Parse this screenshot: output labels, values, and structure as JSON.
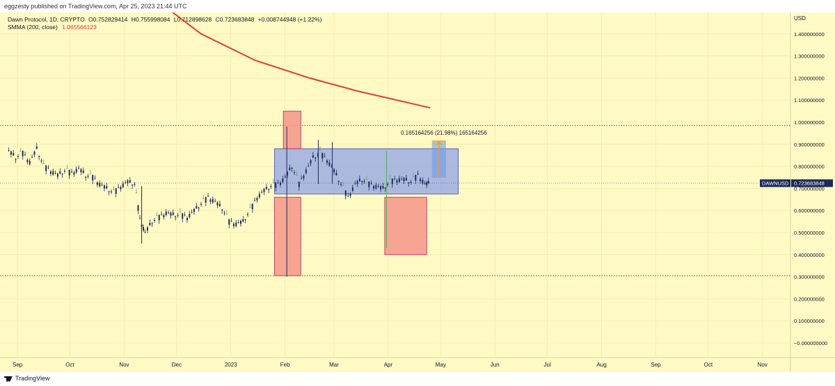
{
  "header": {
    "publisher": "eggzesty published on TradingView.com, Apr 25, 2023 21:44 UTC"
  },
  "legend": {
    "symbol": "Dawn Protocol, 1D, CRYPTO",
    "open": "O0.752829414",
    "high": "H0.755998084",
    "low": "L0.712898628",
    "close": "C0.723683848",
    "change": "+0.008744948 (+1.22%)",
    "ma_label": "SMMA (200, close)",
    "ma_value": "1.065566123"
  },
  "colors": {
    "background": "#fff9c4",
    "candle": "#1c2a5a",
    "candle_up": "#4caf50",
    "ma": "#e53935",
    "range_box": "#8fa3e8",
    "red_box": "#f5978a",
    "measure": "#ff9800"
  },
  "price_label": {
    "symbol": "DAWNUSD",
    "value": "0.723683848"
  },
  "measure_label": "0.165164256 (21.98%) 165164256",
  "footer": {
    "logo": "TradingView"
  },
  "chart_data": {
    "type": "candlestick",
    "currency": "USD",
    "ylim": [
      -0.05,
      1.6
    ],
    "yticks": [
      "1.400000000",
      "1.300000000",
      "1.200000000",
      "1.100000000",
      "1.000000000",
      "0.900000000",
      "0.800000000",
      "0.700000000",
      "0.600000000",
      "0.500000000",
      "0.400000000",
      "0.300000000",
      "0.200000000",
      "0.100000000",
      "−0.000000000"
    ],
    "ytick_values": [
      1.4,
      1.3,
      1.2,
      1.1,
      1.0,
      0.9,
      0.8,
      0.7,
      0.6,
      0.5,
      0.4,
      0.3,
      0.2,
      0.1,
      0.0
    ],
    "xlabels": [
      "Sep",
      "Oct",
      "Nov",
      "Dec",
      "2023",
      "Feb",
      "Mar",
      "Apr",
      "May",
      "Jun",
      "Jul",
      "Aug",
      "Sep",
      "Oct",
      "Nov"
    ],
    "xlabel_dates": [
      "2022-09-01",
      "2022-10-01",
      "2022-11-01",
      "2022-12-01",
      "2023-01-01",
      "2023-02-01",
      "2023-03-01",
      "2023-04-01",
      "2023-05-01",
      "2023-06-01",
      "2023-07-01",
      "2023-08-01",
      "2023-09-01",
      "2023-10-01",
      "2023-11-01"
    ],
    "last_price": 0.723683848,
    "horizontal_lines": [
      0.985,
      0.305
    ],
    "smma_200": {
      "name": "SMMA (200, close)",
      "points": [
        [
          "2022-10-15",
          1.78
        ],
        [
          "2022-11-15",
          1.58
        ],
        [
          "2022-12-15",
          1.4
        ],
        [
          "2023-01-15",
          1.28
        ],
        [
          "2023-02-15",
          1.2
        ],
        [
          "2023-03-15",
          1.14
        ],
        [
          "2023-04-25",
          1.065
        ]
      ]
    },
    "boxes": [
      {
        "kind": "range",
        "x0": "2023-01-26",
        "x1": "2023-05-11",
        "y0": 0.675,
        "y1": 0.88
      },
      {
        "kind": "red",
        "x0": "2023-01-31",
        "x1": "2023-02-10",
        "y0": 0.88,
        "y1": 1.05
      },
      {
        "kind": "red",
        "x0": "2023-01-26",
        "x1": "2023-02-10",
        "y0": 0.305,
        "y1": 0.66
      },
      {
        "kind": "red",
        "x0": "2023-03-30",
        "x1": "2023-04-23",
        "y0": 0.4,
        "y1": 0.66
      }
    ],
    "measure": {
      "x0": "2023-04-26",
      "x1": "2023-05-04",
      "y0": 0.75,
      "y1": 0.915
    },
    "candles_close": [
      [
        "2022-08-27",
        0.87
      ],
      [
        "2022-08-31",
        0.84
      ],
      [
        "2022-09-04",
        0.86
      ],
      [
        "2022-09-08",
        0.82
      ],
      [
        "2022-09-12",
        0.88
      ],
      [
        "2022-09-16",
        0.8
      ],
      [
        "2022-09-20",
        0.78
      ],
      [
        "2022-09-24",
        0.76
      ],
      [
        "2022-09-28",
        0.78
      ],
      [
        "2022-10-02",
        0.77
      ],
      [
        "2022-10-06",
        0.79
      ],
      [
        "2022-10-10",
        0.76
      ],
      [
        "2022-10-14",
        0.75
      ],
      [
        "2022-10-18",
        0.72
      ],
      [
        "2022-10-22",
        0.7
      ],
      [
        "2022-10-26",
        0.68
      ],
      [
        "2022-10-30",
        0.71
      ],
      [
        "2022-11-03",
        0.73
      ],
      [
        "2022-11-07",
        0.72
      ],
      [
        "2022-11-10",
        0.56
      ],
      [
        "2022-11-13",
        0.5
      ],
      [
        "2022-11-17",
        0.55
      ],
      [
        "2022-11-21",
        0.57
      ],
      [
        "2022-11-25",
        0.59
      ],
      [
        "2022-11-29",
        0.58
      ],
      [
        "2022-12-03",
        0.58
      ],
      [
        "2022-12-07",
        0.57
      ],
      [
        "2022-12-11",
        0.6
      ],
      [
        "2022-12-15",
        0.63
      ],
      [
        "2022-12-19",
        0.66
      ],
      [
        "2022-12-23",
        0.64
      ],
      [
        "2022-12-27",
        0.61
      ],
      [
        "2022-12-31",
        0.55
      ],
      [
        "2023-01-04",
        0.54
      ],
      [
        "2023-01-08",
        0.55
      ],
      [
        "2023-01-12",
        0.6
      ],
      [
        "2023-01-16",
        0.66
      ],
      [
        "2023-01-20",
        0.69
      ],
      [
        "2023-01-24",
        0.71
      ],
      [
        "2023-01-28",
        0.72
      ],
      [
        "2023-02-01",
        0.75
      ],
      [
        "2023-02-05",
        0.8
      ],
      [
        "2023-02-09",
        0.72
      ],
      [
        "2023-02-13",
        0.78
      ],
      [
        "2023-02-17",
        0.84
      ],
      [
        "2023-02-21",
        0.86
      ],
      [
        "2023-02-25",
        0.83
      ],
      [
        "2023-03-01",
        0.78
      ],
      [
        "2023-03-05",
        0.72
      ],
      [
        "2023-03-09",
        0.66
      ],
      [
        "2023-03-13",
        0.72
      ],
      [
        "2023-03-17",
        0.74
      ],
      [
        "2023-03-21",
        0.72
      ],
      [
        "2023-03-25",
        0.71
      ],
      [
        "2023-03-29",
        0.7
      ],
      [
        "2023-04-02",
        0.73
      ],
      [
        "2023-04-06",
        0.74
      ],
      [
        "2023-04-10",
        0.74
      ],
      [
        "2023-04-14",
        0.73
      ],
      [
        "2023-04-18",
        0.76
      ],
      [
        "2023-04-22",
        0.72
      ],
      [
        "2023-04-25",
        0.724
      ]
    ]
  }
}
